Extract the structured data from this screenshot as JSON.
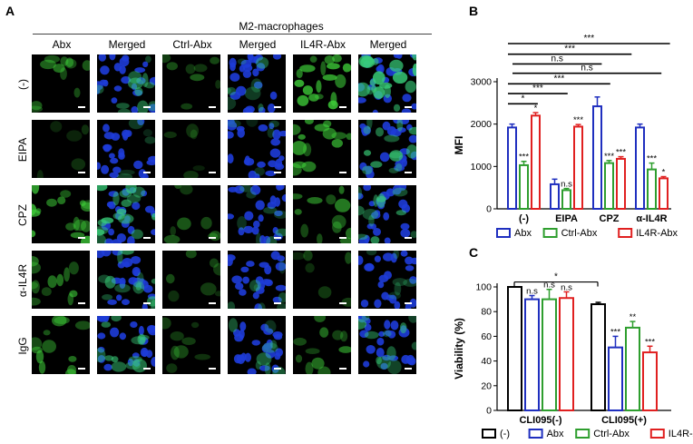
{
  "panels": {
    "a": "A",
    "b": "B",
    "c": "C"
  },
  "micrograph": {
    "group_title": "M2-macrophages",
    "columns": [
      "Abx",
      "Merged",
      "Ctrl-Abx",
      "Merged",
      "IL4R-Abx",
      "Merged"
    ],
    "rows": [
      "(-)",
      "EIPA",
      "CPZ",
      "α-IL4R",
      "IgG"
    ]
  },
  "chart_data": [
    {
      "type": "bar",
      "ylabel": "MFI",
      "ylim": [
        0,
        3000
      ],
      "yticks": [
        0,
        1000,
        2000,
        3000
      ],
      "categories": [
        "(-)",
        "EIPA",
        "CPZ",
        "α-IL4R"
      ],
      "series": [
        {
          "name": "Abx",
          "color": "#1f2fbf",
          "values": [
            1920,
            580,
            2420,
            1920
          ],
          "errors": [
            80,
            120,
            220,
            80
          ],
          "sig": [
            "",
            "",
            "",
            ""
          ]
        },
        {
          "name": "Ctrl-Abx",
          "color": "#2e9e2e",
          "values": [
            1030,
            440,
            1080,
            930
          ],
          "errors": [
            90,
            40,
            60,
            150
          ],
          "sig": [
            "***",
            "n.s",
            "***",
            "***"
          ]
        },
        {
          "name": "IL4R-Abx",
          "color": "#e02020",
          "values": [
            2200,
            1940,
            1180,
            720
          ],
          "errors": [
            70,
            50,
            50,
            40
          ],
          "sig": [
            "*",
            "***",
            "***",
            "*"
          ]
        }
      ],
      "brackets": [
        {
          "label": "***",
          "y": 3900
        },
        {
          "label": "***",
          "y": 3650
        },
        {
          "label": "n.s",
          "y": 3420
        },
        {
          "label": "n.s",
          "y": 3200
        },
        {
          "label": "***",
          "y": 2950
        },
        {
          "label": "***",
          "y": 2720
        },
        {
          "label": "*",
          "y": 2480
        }
      ],
      "legend": [
        "Abx",
        "Ctrl-Abx",
        "IL4R-Abx"
      ]
    },
    {
      "type": "bar",
      "ylabel": "Viability (%)",
      "ylim": [
        0,
        100
      ],
      "yticks": [
        0,
        20,
        40,
        60,
        80,
        100
      ],
      "categories": [
        "CLI095(-)",
        "CLI095(+)"
      ],
      "series": [
        {
          "name": "(-)",
          "color": "#000000",
          "values": [
            100,
            86
          ],
          "errors": [
            0,
            1.5
          ],
          "sig": [
            "",
            ""
          ]
        },
        {
          "name": "Abx",
          "color": "#1f2fbf",
          "values": [
            90,
            51
          ],
          "errors": [
            3,
            9
          ],
          "sig": [
            "n.s",
            "***"
          ]
        },
        {
          "name": "Ctrl-Abx",
          "color": "#2e9e2e",
          "values": [
            90,
            67
          ],
          "errors": [
            8,
            5
          ],
          "sig": [
            "n.s",
            "**"
          ]
        },
        {
          "name": "IL4R-Abx",
          "color": "#e02020",
          "values": [
            91,
            47
          ],
          "errors": [
            5,
            5
          ],
          "sig": [
            "n.s",
            "***"
          ]
        }
      ],
      "brackets": [
        {
          "label": "*",
          "y": 104
        }
      ],
      "legend": [
        "(-)",
        "Abx",
        "Ctrl-Abx",
        "IL4R-Abx"
      ]
    }
  ]
}
